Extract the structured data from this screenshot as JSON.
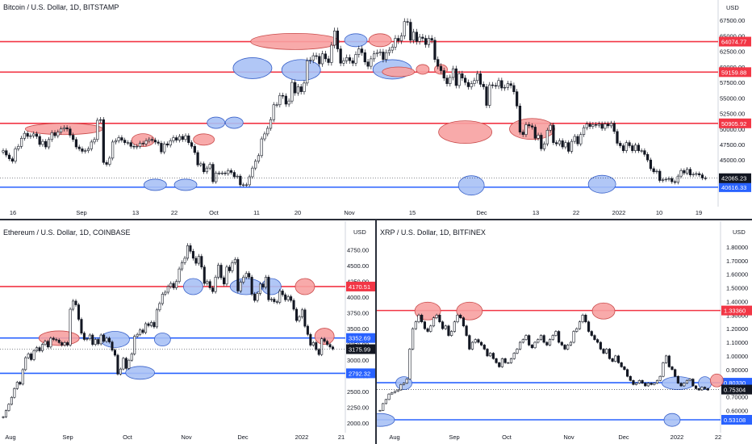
{
  "charts": [
    {
      "title": "Bitcoin / U.S. Dollar, 1D, BITSTAMP",
      "currency": "USD",
      "chart_data": {
        "type": "candlestick",
        "ylim": [
          38000,
          70000
        ],
        "y_ticks": [
          "45000.00",
          "47500.00",
          "50000.00",
          "52500.00",
          "55000.00",
          "57500.00",
          "60000.00",
          "62500.00",
          "65000.00",
          "67500.00"
        ],
        "x_ticks": [
          "16",
          "Sep",
          "13",
          "22",
          "Oct",
          "11",
          "20",
          "Nov",
          "15",
          "Dec",
          "13",
          "22",
          "2022",
          "10",
          "19"
        ],
        "lines": [
          {
            "value": 64074.77,
            "label": "64074.77",
            "color": "#f23645"
          },
          {
            "value": 59159.88,
            "label": "59159.88",
            "color": "#f23645"
          },
          {
            "value": 50905.92,
            "label": "50905.92",
            "color": "#f23645"
          },
          {
            "value": 40616.33,
            "label": "40616.33",
            "color": "#2962ff"
          }
        ],
        "last_price": {
          "value": 42065.23,
          "label": "42065.23"
        },
        "closes": [
          46500,
          45800,
          45200,
          44800,
          46800,
          47200,
          48500,
          49300,
          48800,
          48900,
          49200,
          48800,
          47500,
          48000,
          47100,
          48300,
          49400,
          48900,
          49500,
          50000,
          50200,
          50000,
          49000,
          48300,
          47100,
          46800,
          46400,
          46500,
          46800,
          47900,
          48300,
          51400,
          51500,
          44600,
          44300,
          45300,
          47900,
          48100,
          48600,
          48200,
          47800,
          47800,
          47200,
          47100,
          47200,
          47700,
          47600,
          48100,
          48300,
          48200,
          47900,
          47700,
          46300,
          47600,
          47400,
          48100,
          48600,
          48200,
          48800,
          48300,
          48900,
          47800,
          47200,
          46200,
          44200,
          44400,
          43100,
          43700,
          44300,
          41500,
          42900,
          42900,
          42900,
          42800,
          43300,
          43000,
          42300,
          42400,
          41000,
          41000,
          41000,
          42300,
          43700,
          44800,
          45700,
          48400,
          49200,
          50100,
          51500,
          53900,
          53900,
          55400,
          55300,
          54000,
          54500,
          57500,
          55800,
          56800,
          56000,
          57400,
          61000,
          61100,
          61800,
          61700,
          60500,
          62100,
          61300,
          60700,
          63500,
          65800,
          62900,
          60600,
          61000,
          61500,
          61000,
          60600,
          62000,
          62900,
          62300,
          60800,
          60100,
          61300,
          62100,
          62300,
          62400,
          61200,
          62300,
          62700,
          63200,
          64600,
          64200,
          65000,
          67300,
          67200,
          64300,
          65600,
          64100,
          64800,
          64600,
          63600,
          64600,
          64300,
          61200,
          60100,
          59400,
          58200,
          57300,
          58300,
          59700,
          57000,
          58900,
          58200,
          57500,
          56800,
          57300,
          57800,
          58900,
          57200,
          56800,
          53800,
          57100,
          57000,
          56900,
          57800,
          56600,
          56700,
          57300,
          57000,
          56000,
          53700,
          49500,
          49100,
          50700,
          50500,
          50300,
          48500,
          49000,
          46800,
          47600,
          49800,
          50600,
          47800,
          47600,
          48100,
          47100,
          47800,
          46400,
          48000,
          48800,
          47600,
          49100,
          50200,
          50800,
          50400,
          50700,
          50600,
          50800,
          50100,
          50800,
          50500,
          50900,
          49600,
          47700,
          47300,
          46500,
          47800,
          47300,
          46500,
          47400,
          46500,
          46500,
          45900,
          45000,
          43600,
          43100,
          43200,
          41700,
          41800,
          41900,
          42000,
          41500,
          41400,
          42400,
          43300,
          42900,
          43500,
          42600,
          42700,
          42800,
          42600,
          42100,
          42065
        ]
      }
    },
    {
      "title": "Ethereum / U.S. Dollar, 1D, COINBASE",
      "currency": "USD",
      "chart_data": {
        "type": "candlestick",
        "ylim": [
          1900,
          5080
        ],
        "y_ticks": [
          "2000.00",
          "2250.00",
          "2500.00",
          "2750.00",
          "3000.00",
          "3250.00",
          "3500.00",
          "3750.00",
          "4000.00",
          "4250.00",
          "4500.00",
          "4750.00"
        ],
        "x_ticks": [
          "Aug",
          "Sep",
          "Oct",
          "Nov",
          "Dec",
          "2022",
          "21"
        ],
        "lines": [
          {
            "value": 4170.51,
            "label": "4170.51",
            "color": "#f23645"
          },
          {
            "value": 3352.69,
            "label": "3352.69",
            "color": "#2962ff"
          },
          {
            "value": 2792.32,
            "label": "2792.32",
            "color": "#2962ff"
          }
        ],
        "last_price": {
          "value": 3175.99,
          "label": "3175.99"
        },
        "closes": [
          2100,
          2200,
          2300,
          2410,
          2550,
          2650,
          2620,
          2850,
          3040,
          3100,
          3010,
          3150,
          3200,
          3150,
          3250,
          3300,
          3210,
          3350,
          3330,
          3320,
          3280,
          3240,
          3280,
          3240,
          3810,
          3940,
          3880,
          3650,
          3430,
          3330,
          3340,
          3400,
          3250,
          3330,
          3260,
          3400,
          3300,
          3350,
          3290,
          3160,
          3080,
          2780,
          2860,
          3030,
          2870,
          3000,
          3100,
          3380,
          3410,
          3480,
          3440,
          3580,
          3550,
          3600,
          3530,
          3800,
          3900,
          4050,
          4080,
          4170,
          4220,
          4150,
          4250,
          4450,
          4550,
          4620,
          4820,
          4730,
          4620,
          4540,
          4650,
          4480,
          4220,
          4250,
          4150,
          4090,
          4320,
          4510,
          4310,
          4210,
          4480,
          4420,
          4550,
          4600,
          4100,
          4240,
          4320,
          4380,
          4320,
          4050,
          3950,
          4060,
          4210,
          4160,
          4320,
          3960,
          3970,
          3930,
          3920,
          4100,
          4040,
          3960,
          4010,
          3950,
          3810,
          3630,
          3690,
          3800,
          3540,
          3410,
          3240,
          3280,
          3170,
          3090,
          3340,
          3300,
          3250,
          3210,
          3180
        ]
      }
    },
    {
      "title": "XRP / U.S. Dollar, 1D, BITFINEX",
      "currency": "USD",
      "chart_data": {
        "type": "candlestick",
        "ylim": [
          0.46,
          1.93
        ],
        "y_ticks": [
          "0.60000",
          "0.70000",
          "0.80000",
          "0.90000",
          "1.00000",
          "1.10000",
          "1.20000",
          "1.30000",
          "1.40000",
          "1.50000",
          "1.60000",
          "1.70000",
          "1.80000",
          "1.90000"
        ],
        "x_ticks": [
          "Aug",
          "Sep",
          "Oct",
          "Nov",
          "Dec",
          "2022",
          "22"
        ],
        "lines": [
          {
            "value": 1.3336,
            "label": "1.33360",
            "color": "#f23645"
          },
          {
            "value": 0.8033,
            "label": "0.80330",
            "color": "#2962ff"
          },
          {
            "value": 0.53108,
            "label": "0.53108",
            "color": "#2962ff"
          }
        ],
        "last_price": {
          "value": 0.75304,
          "label": "0.75304"
        },
        "closes": [
          0.6,
          0.65,
          0.68,
          0.72,
          0.73,
          0.74,
          0.75,
          0.79,
          0.8,
          0.83,
          1.05,
          1.2,
          1.25,
          1.3,
          1.25,
          1.2,
          1.18,
          1.22,
          1.28,
          1.3,
          1.25,
          1.2,
          1.22,
          1.15,
          1.18,
          1.25,
          1.3,
          1.28,
          1.22,
          1.15,
          1.05,
          1.1,
          1.12,
          1.1,
          1.08,
          1.05,
          1.0,
          1.02,
          0.98,
          0.95,
          0.92,
          0.98,
          0.95,
          0.95,
          0.98,
          1.02,
          1.05,
          1.1,
          1.12,
          1.15,
          1.08,
          1.06,
          1.1,
          1.12,
          1.15,
          1.1,
          1.08,
          1.12,
          1.15,
          1.18,
          1.1,
          1.08,
          1.05,
          1.08,
          1.1,
          1.18,
          1.2,
          1.25,
          1.3,
          1.25,
          1.18,
          1.15,
          1.12,
          1.1,
          1.05,
          1.02,
          1.05,
          0.98,
          0.96,
          1.0,
          0.95,
          0.92,
          0.9,
          0.85,
          0.82,
          0.79,
          0.8,
          0.82,
          0.8,
          0.78,
          0.8,
          0.79,
          0.8,
          0.82,
          0.85,
          0.95,
          1.0,
          0.92,
          0.9,
          0.85,
          0.8,
          0.78,
          0.8,
          0.82,
          0.83,
          0.78,
          0.76,
          0.75,
          0.77,
          0.76,
          0.75
        ]
      }
    }
  ],
  "colors": {
    "up": "#131722",
    "down": "#131722",
    "red_line": "#f23645",
    "blue_line": "#2962ff",
    "red_fill": "#f7a1a1",
    "blue_fill": "#a9c1f5",
    "last_price_tag": "#131722"
  }
}
